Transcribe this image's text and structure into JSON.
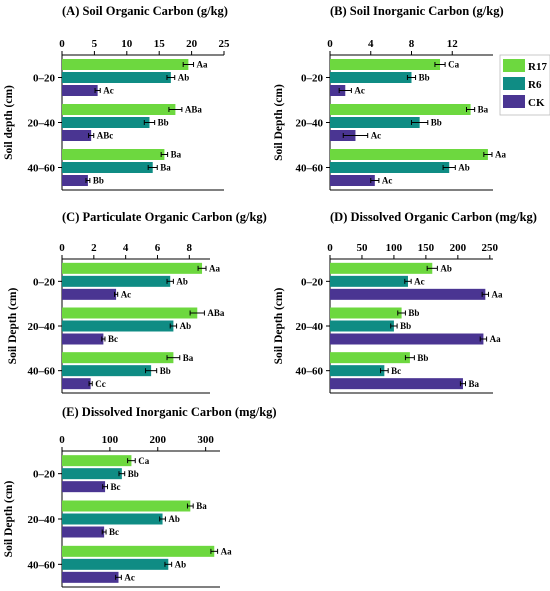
{
  "chart_data": [
    {
      "id": "A",
      "type": "bar",
      "orientation": "horizontal",
      "title": "(A) Soil Organic Carbon (g/kg)",
      "ylabel": "Soil depth (cm)",
      "xlim": [
        0,
        25
      ],
      "xticks": [
        0,
        5,
        10,
        15,
        20,
        25
      ],
      "categories": [
        "0–20",
        "20–40",
        "40–60"
      ],
      "series": [
        {
          "name": "R17",
          "values": [
            19.5,
            17.5,
            15.8
          ],
          "errors": [
            0.8,
            1.0,
            0.5
          ],
          "labels": [
            "Aa",
            "ABa",
            "Ba"
          ]
        },
        {
          "name": "R6",
          "values": [
            16.8,
            13.5,
            14.0
          ],
          "errors": [
            0.6,
            0.8,
            0.7
          ],
          "labels": [
            "Ab",
            "Bb",
            "Ba"
          ]
        },
        {
          "name": "CK",
          "values": [
            5.5,
            4.5,
            4.0
          ],
          "errors": [
            0.4,
            0.4,
            0.3
          ],
          "labels": [
            "Ac",
            "ABc",
            "Bb"
          ]
        }
      ]
    },
    {
      "id": "B",
      "type": "bar",
      "orientation": "horizontal",
      "title": "(B) Soil Inorganic Carbon (g/kg)",
      "ylabel": "Soil Depth (cm)",
      "xlim": [
        0,
        16
      ],
      "xticks": [
        0,
        4,
        8,
        12
      ],
      "categories": [
        "0–20",
        "20–40",
        "40–60"
      ],
      "series": [
        {
          "name": "R17",
          "values": [
            10.8,
            13.8,
            15.5
          ],
          "errors": [
            0.5,
            0.4,
            0.4
          ],
          "labels": [
            "Ca",
            "Ba",
            "Aa"
          ]
        },
        {
          "name": "R6",
          "values": [
            8.0,
            8.8,
            11.7
          ],
          "errors": [
            0.4,
            0.8,
            0.6
          ],
          "labels": [
            "Bb",
            "Bb",
            "Ab"
          ]
        },
        {
          "name": "CK",
          "values": [
            1.5,
            2.5,
            4.4
          ],
          "errors": [
            0.6,
            1.2,
            0.4
          ],
          "labels": [
            "Ac",
            "Ac",
            "Ac"
          ]
        }
      ]
    },
    {
      "id": "C",
      "type": "bar",
      "orientation": "horizontal",
      "title": "(C) Particulate Organic Carbon (g/kg)",
      "ylabel": "Soil Depth (cm)",
      "xlim": [
        0,
        9.3
      ],
      "xticks": [
        0,
        2,
        4,
        6,
        8
      ],
      "categories": [
        "0–20",
        "20–40",
        "40–60"
      ],
      "series": [
        {
          "name": "R17",
          "values": [
            8.8,
            8.5,
            7.0
          ],
          "errors": [
            0.25,
            0.45,
            0.4
          ],
          "labels": [
            "Aa",
            "ABa",
            "Ba"
          ]
        },
        {
          "name": "R6",
          "values": [
            6.8,
            7.0,
            5.6
          ],
          "errors": [
            0.2,
            0.2,
            0.35
          ],
          "labels": [
            "Ab",
            "Ab",
            "Bb"
          ]
        },
        {
          "name": "CK",
          "values": [
            3.4,
            2.6,
            1.8
          ],
          "errors": [
            0.1,
            0.1,
            0.1
          ],
          "labels": [
            "Ac",
            "Bc",
            "Cc"
          ]
        }
      ]
    },
    {
      "id": "D",
      "type": "bar",
      "orientation": "horizontal",
      "title": "(D) Dissolved Organic Carbon (mg/kg)",
      "ylabel": "Soil Depth (cm)",
      "xlim": [
        0,
        255
      ],
      "xticks": [
        0,
        50,
        100,
        150,
        200,
        250
      ],
      "categories": [
        "0–20",
        "20–40",
        "40–60"
      ],
      "series": [
        {
          "name": "R17",
          "values": [
            160,
            112,
            125
          ],
          "errors": [
            8,
            6,
            7
          ],
          "labels": [
            "Ab",
            "Bb",
            "Bb"
          ]
        },
        {
          "name": "R6",
          "values": [
            122,
            100,
            85
          ],
          "errors": [
            5,
            5,
            6
          ],
          "labels": [
            "Ac",
            "Bb",
            "Bc"
          ]
        },
        {
          "name": "CK",
          "values": [
            243,
            240,
            208
          ],
          "errors": [
            5,
            5,
            4
          ],
          "labels": [
            "Aa",
            "Aa",
            "Ba"
          ]
        }
      ]
    },
    {
      "id": "E",
      "type": "bar",
      "orientation": "horizontal",
      "title": "(E) Dissolved Inorganic Carbon (mg/kg)",
      "ylabel": "Soil Depth (cm)",
      "xlim": [
        0,
        330
      ],
      "xticks": [
        0,
        100,
        200,
        300
      ],
      "categories": [
        "0–20",
        "20–40",
        "40–60"
      ],
      "series": [
        {
          "name": "R17",
          "values": [
            145,
            268,
            318
          ],
          "errors": [
            8,
            6,
            7
          ],
          "labels": [
            "Ca",
            "Ba",
            "Aa"
          ]
        },
        {
          "name": "R6",
          "values": [
            125,
            210,
            222
          ],
          "errors": [
            6,
            6,
            7
          ],
          "labels": [
            "Bb",
            "Ab",
            "Ab"
          ]
        },
        {
          "name": "CK",
          "values": [
            90,
            88,
            118
          ],
          "errors": [
            5,
            4,
            6
          ],
          "labels": [
            "Bc",
            "Bc",
            "Ac"
          ]
        }
      ]
    }
  ],
  "legend": {
    "position": "right",
    "items": [
      {
        "name": "R17",
        "color": "#6dd83f"
      },
      {
        "name": "R6",
        "color": "#0f8c84"
      },
      {
        "name": "CK",
        "color": "#4a3592"
      }
    ]
  },
  "colors": {
    "R17": "#6dd83f",
    "R6": "#0f8c84",
    "CK": "#4a3592",
    "axis": "#000000"
  }
}
